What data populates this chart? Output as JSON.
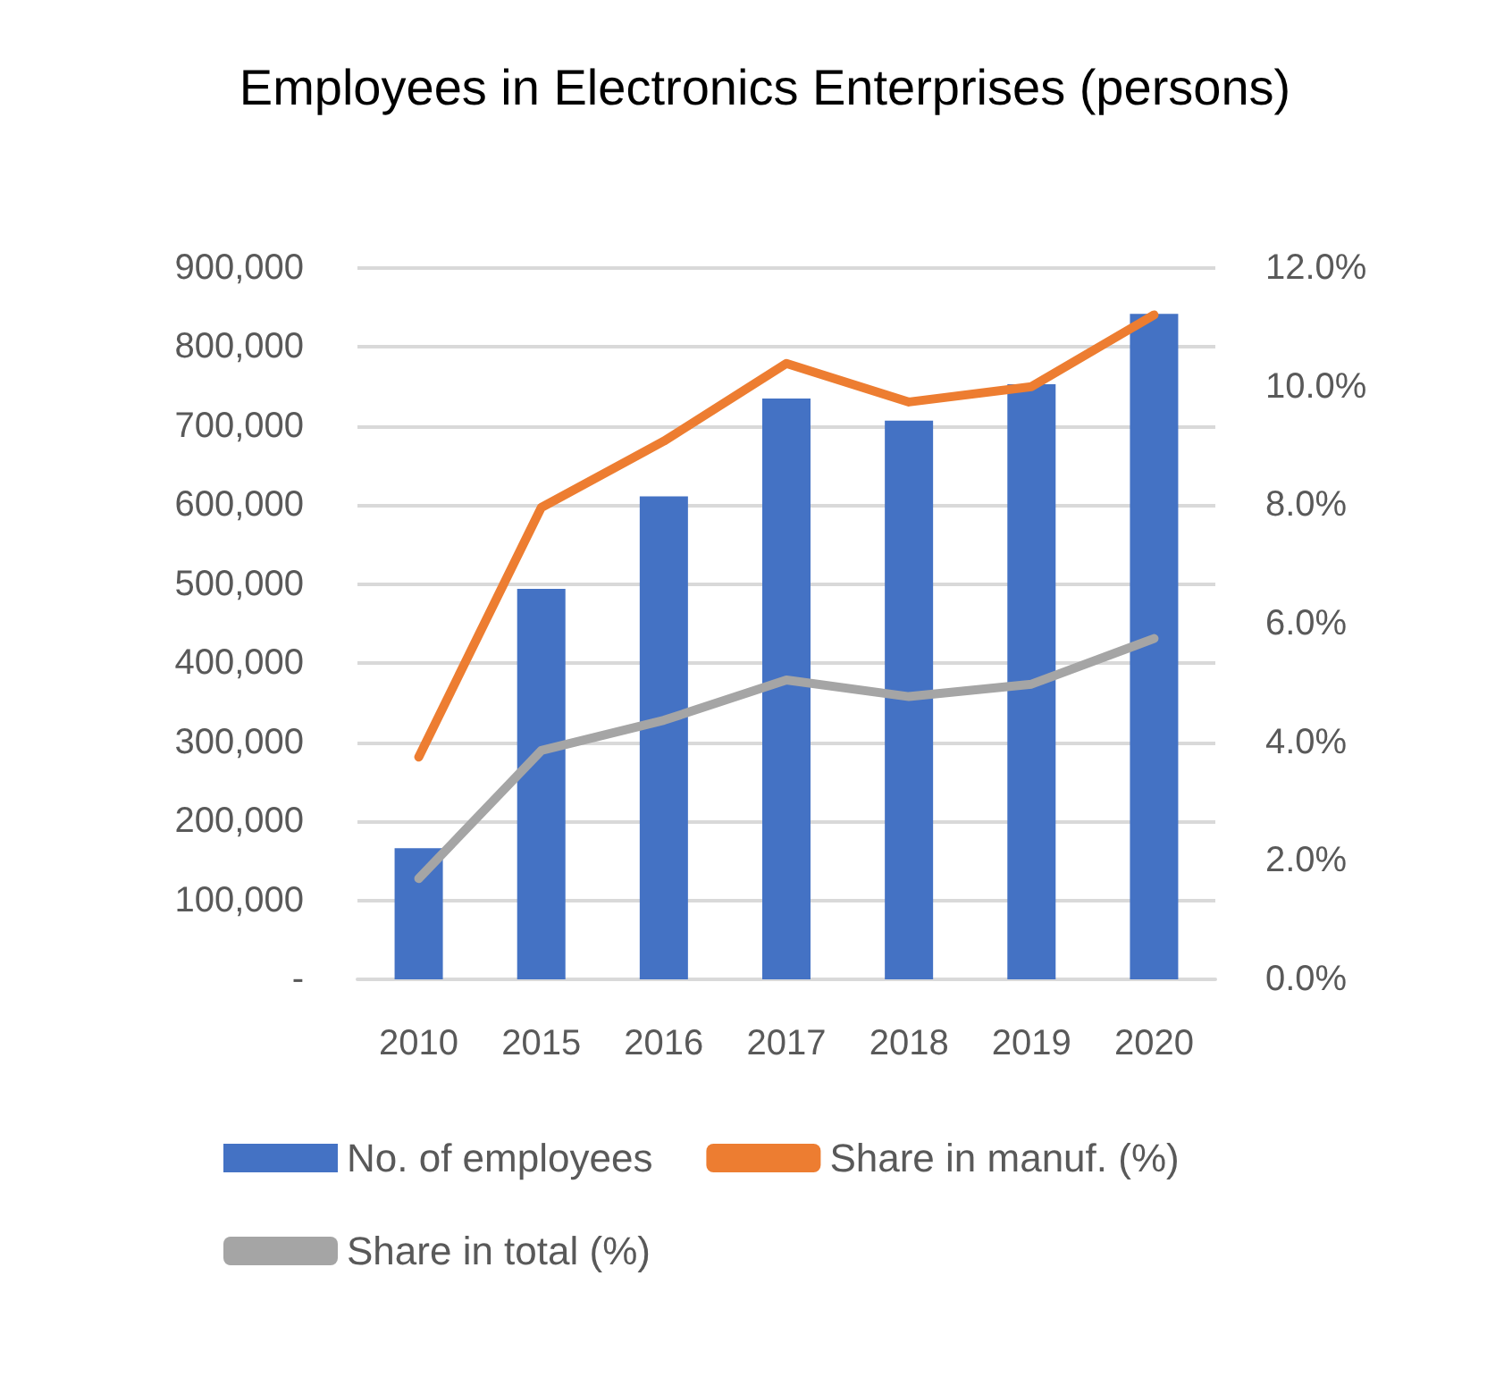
{
  "chart_data": {
    "type": "bar",
    "title": "Employees in Electronics Enterprises (persons)",
    "categories": [
      "2010",
      "2015",
      "2016",
      "2017",
      "2018",
      "2019",
      "2020"
    ],
    "series": [
      {
        "name": "No. of employees",
        "color": "#4472c4",
        "values": [
          166000,
          494000,
          611000,
          735000,
          707000,
          753000,
          842000
        ]
      },
      {
        "name": "Share in manuf. (%)",
        "type": "line",
        "axis": "y2",
        "color": "#ed7d31",
        "values": [
          3.75,
          7.96,
          9.08,
          10.39,
          9.74,
          10.0,
          11.21
        ]
      },
      {
        "name": "Share in total (%)",
        "type": "line",
        "axis": "y2",
        "color": "#a5a5a5",
        "values": [
          1.7,
          3.86,
          4.37,
          5.05,
          4.77,
          4.98,
          5.75
        ]
      }
    ],
    "ylim": [
      0,
      900000
    ],
    "yticks": [
      {
        "value": 0,
        "label": "-"
      },
      {
        "value": 100000,
        "label": "100,000"
      },
      {
        "value": 200000,
        "label": "200,000"
      },
      {
        "value": 300000,
        "label": "300,000"
      },
      {
        "value": 400000,
        "label": "400,000"
      },
      {
        "value": 500000,
        "label": "500,000"
      },
      {
        "value": 600000,
        "label": "600,000"
      },
      {
        "value": 700000,
        "label": "700,000"
      },
      {
        "value": 800000,
        "label": "800,000"
      },
      {
        "value": 900000,
        "label": "900,000"
      }
    ],
    "y2lim": [
      0,
      12
    ],
    "y2ticks": [
      {
        "value": 0,
        "label": "0.0%"
      },
      {
        "value": 2,
        "label": "2.0%"
      },
      {
        "value": 4,
        "label": "4.0%"
      },
      {
        "value": 6,
        "label": "6.0%"
      },
      {
        "value": 8,
        "label": "8.0%"
      },
      {
        "value": 10,
        "label": "10.0%"
      },
      {
        "value": 12,
        "label": "12.0%"
      }
    ],
    "grid": "y",
    "legend": "bottom",
    "marker": "none",
    "line_style": "solid"
  }
}
